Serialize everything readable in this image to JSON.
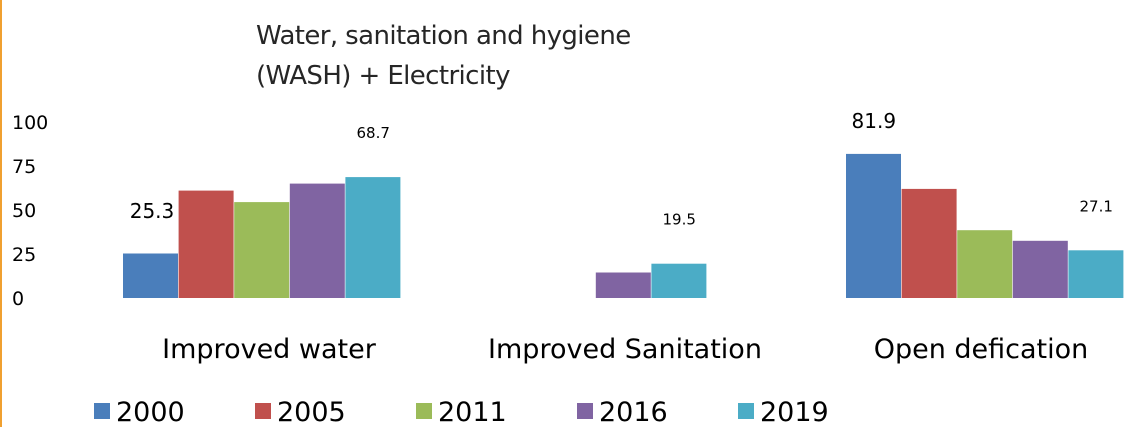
{
  "chart_data": {
    "type": "bar",
    "title_lines": [
      "Water, sanitation and hygiene",
      "(WASH) + Electricity"
    ],
    "categories": [
      "Improved water",
      "Improved Sanitation",
      "Open defication"
    ],
    "ylim": [
      0,
      100
    ],
    "yticks": [
      0,
      25,
      50,
      75,
      100
    ],
    "grid": false,
    "legend_position": "bottom",
    "series": [
      {
        "name": "2000",
        "color": "#4a7ebb",
        "values": [
          25.3,
          null,
          81.9
        ]
      },
      {
        "name": "2005",
        "color": "#c0504d",
        "values": [
          61,
          null,
          62
        ]
      },
      {
        "name": "2011",
        "color": "#9bbb59",
        "values": [
          54.5,
          null,
          38.5
        ]
      },
      {
        "name": "2016",
        "color": "#8064a2",
        "values": [
          65,
          14.5,
          32.5
        ]
      },
      {
        "name": "2019",
        "color": "#4bacc6",
        "values": [
          68.7,
          19.5,
          27.1
        ]
      }
    ],
    "data_labels": [
      {
        "series": 0,
        "category": 0,
        "text": "25.3"
      },
      {
        "series": 4,
        "category": 0,
        "text": "68.7"
      },
      {
        "series": 4,
        "category": 1,
        "text": "19.5"
      },
      {
        "series": 0,
        "category": 2,
        "text": "81.9"
      },
      {
        "series": 4,
        "category": 2,
        "text": "27.1"
      }
    ]
  }
}
